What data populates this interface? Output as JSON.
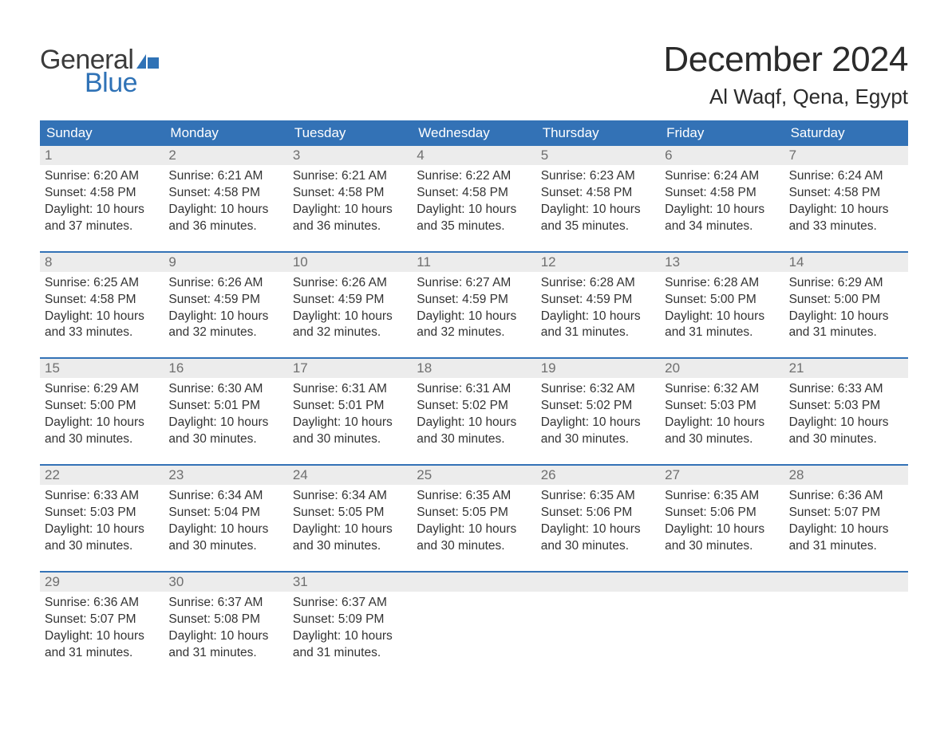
{
  "logo": {
    "text_top": "General",
    "text_bottom": "Blue",
    "top_color": "#3b3b3b",
    "bottom_color": "#2f72b6",
    "icon_color": "#2f72b6"
  },
  "title": {
    "month": "December 2024",
    "location": "Al Waqf, Qena, Egypt"
  },
  "colors": {
    "header_bg": "#3372b6",
    "header_text": "#ffffff",
    "daynum_bg": "#ececec",
    "daynum_text": "#6f6f6f",
    "body_text": "#333333",
    "rule": "#3372b6",
    "page_bg": "#ffffff"
  },
  "typography": {
    "month_fontsize": 44,
    "location_fontsize": 26,
    "header_fontsize": 17,
    "daynum_fontsize": 17,
    "body_fontsize": 15.5,
    "logo_fontsize": 34
  },
  "day_headers": [
    "Sunday",
    "Monday",
    "Tuesday",
    "Wednesday",
    "Thursday",
    "Friday",
    "Saturday"
  ],
  "weeks": [
    [
      {
        "n": "1",
        "sunrise": "Sunrise: 6:20 AM",
        "sunset": "Sunset: 4:58 PM",
        "d1": "Daylight: 10 hours",
        "d2": "and 37 minutes."
      },
      {
        "n": "2",
        "sunrise": "Sunrise: 6:21 AM",
        "sunset": "Sunset: 4:58 PM",
        "d1": "Daylight: 10 hours",
        "d2": "and 36 minutes."
      },
      {
        "n": "3",
        "sunrise": "Sunrise: 6:21 AM",
        "sunset": "Sunset: 4:58 PM",
        "d1": "Daylight: 10 hours",
        "d2": "and 36 minutes."
      },
      {
        "n": "4",
        "sunrise": "Sunrise: 6:22 AM",
        "sunset": "Sunset: 4:58 PM",
        "d1": "Daylight: 10 hours",
        "d2": "and 35 minutes."
      },
      {
        "n": "5",
        "sunrise": "Sunrise: 6:23 AM",
        "sunset": "Sunset: 4:58 PM",
        "d1": "Daylight: 10 hours",
        "d2": "and 35 minutes."
      },
      {
        "n": "6",
        "sunrise": "Sunrise: 6:24 AM",
        "sunset": "Sunset: 4:58 PM",
        "d1": "Daylight: 10 hours",
        "d2": "and 34 minutes."
      },
      {
        "n": "7",
        "sunrise": "Sunrise: 6:24 AM",
        "sunset": "Sunset: 4:58 PM",
        "d1": "Daylight: 10 hours",
        "d2": "and 33 minutes."
      }
    ],
    [
      {
        "n": "8",
        "sunrise": "Sunrise: 6:25 AM",
        "sunset": "Sunset: 4:58 PM",
        "d1": "Daylight: 10 hours",
        "d2": "and 33 minutes."
      },
      {
        "n": "9",
        "sunrise": "Sunrise: 6:26 AM",
        "sunset": "Sunset: 4:59 PM",
        "d1": "Daylight: 10 hours",
        "d2": "and 32 minutes."
      },
      {
        "n": "10",
        "sunrise": "Sunrise: 6:26 AM",
        "sunset": "Sunset: 4:59 PM",
        "d1": "Daylight: 10 hours",
        "d2": "and 32 minutes."
      },
      {
        "n": "11",
        "sunrise": "Sunrise: 6:27 AM",
        "sunset": "Sunset: 4:59 PM",
        "d1": "Daylight: 10 hours",
        "d2": "and 32 minutes."
      },
      {
        "n": "12",
        "sunrise": "Sunrise: 6:28 AM",
        "sunset": "Sunset: 4:59 PM",
        "d1": "Daylight: 10 hours",
        "d2": "and 31 minutes."
      },
      {
        "n": "13",
        "sunrise": "Sunrise: 6:28 AM",
        "sunset": "Sunset: 5:00 PM",
        "d1": "Daylight: 10 hours",
        "d2": "and 31 minutes."
      },
      {
        "n": "14",
        "sunrise": "Sunrise: 6:29 AM",
        "sunset": "Sunset: 5:00 PM",
        "d1": "Daylight: 10 hours",
        "d2": "and 31 minutes."
      }
    ],
    [
      {
        "n": "15",
        "sunrise": "Sunrise: 6:29 AM",
        "sunset": "Sunset: 5:00 PM",
        "d1": "Daylight: 10 hours",
        "d2": "and 30 minutes."
      },
      {
        "n": "16",
        "sunrise": "Sunrise: 6:30 AM",
        "sunset": "Sunset: 5:01 PM",
        "d1": "Daylight: 10 hours",
        "d2": "and 30 minutes."
      },
      {
        "n": "17",
        "sunrise": "Sunrise: 6:31 AM",
        "sunset": "Sunset: 5:01 PM",
        "d1": "Daylight: 10 hours",
        "d2": "and 30 minutes."
      },
      {
        "n": "18",
        "sunrise": "Sunrise: 6:31 AM",
        "sunset": "Sunset: 5:02 PM",
        "d1": "Daylight: 10 hours",
        "d2": "and 30 minutes."
      },
      {
        "n": "19",
        "sunrise": "Sunrise: 6:32 AM",
        "sunset": "Sunset: 5:02 PM",
        "d1": "Daylight: 10 hours",
        "d2": "and 30 minutes."
      },
      {
        "n": "20",
        "sunrise": "Sunrise: 6:32 AM",
        "sunset": "Sunset: 5:03 PM",
        "d1": "Daylight: 10 hours",
        "d2": "and 30 minutes."
      },
      {
        "n": "21",
        "sunrise": "Sunrise: 6:33 AM",
        "sunset": "Sunset: 5:03 PM",
        "d1": "Daylight: 10 hours",
        "d2": "and 30 minutes."
      }
    ],
    [
      {
        "n": "22",
        "sunrise": "Sunrise: 6:33 AM",
        "sunset": "Sunset: 5:03 PM",
        "d1": "Daylight: 10 hours",
        "d2": "and 30 minutes."
      },
      {
        "n": "23",
        "sunrise": "Sunrise: 6:34 AM",
        "sunset": "Sunset: 5:04 PM",
        "d1": "Daylight: 10 hours",
        "d2": "and 30 minutes."
      },
      {
        "n": "24",
        "sunrise": "Sunrise: 6:34 AM",
        "sunset": "Sunset: 5:05 PM",
        "d1": "Daylight: 10 hours",
        "d2": "and 30 minutes."
      },
      {
        "n": "25",
        "sunrise": "Sunrise: 6:35 AM",
        "sunset": "Sunset: 5:05 PM",
        "d1": "Daylight: 10 hours",
        "d2": "and 30 minutes."
      },
      {
        "n": "26",
        "sunrise": "Sunrise: 6:35 AM",
        "sunset": "Sunset: 5:06 PM",
        "d1": "Daylight: 10 hours",
        "d2": "and 30 minutes."
      },
      {
        "n": "27",
        "sunrise": "Sunrise: 6:35 AM",
        "sunset": "Sunset: 5:06 PM",
        "d1": "Daylight: 10 hours",
        "d2": "and 30 minutes."
      },
      {
        "n": "28",
        "sunrise": "Sunrise: 6:36 AM",
        "sunset": "Sunset: 5:07 PM",
        "d1": "Daylight: 10 hours",
        "d2": "and 31 minutes."
      }
    ],
    [
      {
        "n": "29",
        "sunrise": "Sunrise: 6:36 AM",
        "sunset": "Sunset: 5:07 PM",
        "d1": "Daylight: 10 hours",
        "d2": "and 31 minutes."
      },
      {
        "n": "30",
        "sunrise": "Sunrise: 6:37 AM",
        "sunset": "Sunset: 5:08 PM",
        "d1": "Daylight: 10 hours",
        "d2": "and 31 minutes."
      },
      {
        "n": "31",
        "sunrise": "Sunrise: 6:37 AM",
        "sunset": "Sunset: 5:09 PM",
        "d1": "Daylight: 10 hours",
        "d2": "and 31 minutes."
      },
      null,
      null,
      null,
      null
    ]
  ]
}
